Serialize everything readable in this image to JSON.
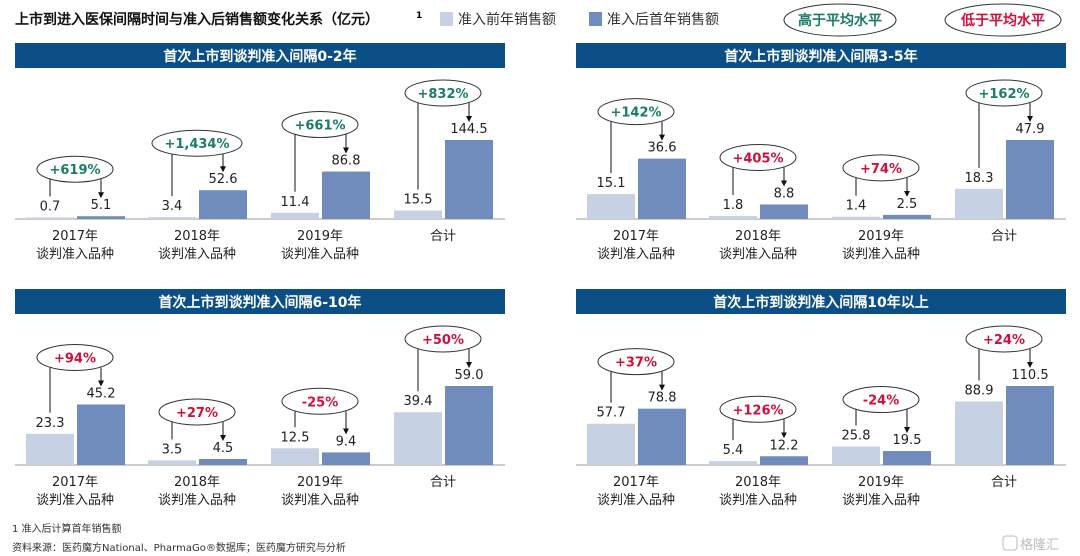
{
  "colors": {
    "header": "#0b4f86",
    "before": "#c6d1e4",
    "after": "#6f8cbd",
    "above_avg": "#1b7c6a",
    "below_avg": "#d0103a"
  },
  "header": {
    "title": "上市到进入医保间隔时间与准入后销售额变化关系（亿元）",
    "footnote_mark": "1",
    "legend_before": "准入前年销售额",
    "legend_after": "准入后首年销售额",
    "badge_above": "高于平均水平",
    "badge_below": "低于平均水平"
  },
  "footer": {
    "note": "1 准入后计算首年销售额",
    "source": "资料来源：医药魔方National、PharmaGo®数据库；医药魔方研究与分析",
    "watermark": "格隆汇"
  },
  "chart_data": [
    {
      "type": "bar",
      "title": "首次上市到谈判准入间隔0-2年",
      "categories": [
        [
          "2017年",
          "谈判准入品种"
        ],
        [
          "2018年",
          "谈判准入品种"
        ],
        [
          "2019年",
          "谈判准入品种"
        ],
        [
          "合计",
          ""
        ]
      ],
      "series": [
        {
          "name": "准入前年销售额",
          "values": [
            0.7,
            3.4,
            11.4,
            15.5
          ]
        },
        {
          "name": "准入后首年销售额",
          "values": [
            5.1,
            52.6,
            86.8,
            144.5
          ]
        }
      ],
      "value_labels": [
        [
          "0.7",
          "5.1"
        ],
        [
          "3.4",
          "52.6"
        ],
        [
          "11.4",
          "86.8"
        ],
        [
          "15.5",
          "144.5"
        ]
      ],
      "changes": [
        "+619%",
        "+1,434%",
        "+661%",
        "+832%"
      ],
      "above_average": [
        true,
        true,
        true,
        true
      ]
    },
    {
      "type": "bar",
      "title": "首次上市到谈判准入间隔3-5年",
      "categories": [
        [
          "2017年",
          "谈判准入品种"
        ],
        [
          "2018年",
          "谈判准入品种"
        ],
        [
          "2019年",
          "谈判准入品种"
        ],
        [
          "合计",
          ""
        ]
      ],
      "series": [
        {
          "name": "准入前年销售额",
          "values": [
            15.1,
            1.8,
            1.4,
            18.3
          ]
        },
        {
          "name": "准入后首年销售额",
          "values": [
            36.6,
            8.8,
            2.5,
            47.9
          ]
        }
      ],
      "value_labels": [
        [
          "15.1",
          "36.6"
        ],
        [
          "1.8",
          "8.8"
        ],
        [
          "1.4",
          "2.5"
        ],
        [
          "18.3",
          "47.9"
        ]
      ],
      "changes": [
        "+142%",
        "+405%",
        "+74%",
        "+162%"
      ],
      "above_average": [
        true,
        false,
        false,
        true
      ]
    },
    {
      "type": "bar",
      "title": "首次上市到谈判准入间隔6-10年",
      "categories": [
        [
          "2017年",
          "谈判准入品种"
        ],
        [
          "2018年",
          "谈判准入品种"
        ],
        [
          "2019年",
          "谈判准入品种"
        ],
        [
          "合计",
          ""
        ]
      ],
      "series": [
        {
          "name": "准入前年销售额",
          "values": [
            23.3,
            3.5,
            12.5,
            39.4
          ]
        },
        {
          "name": "准入后首年销售额",
          "values": [
            45.2,
            4.5,
            9.4,
            59.0
          ]
        }
      ],
      "value_labels": [
        [
          "23.3",
          "45.2"
        ],
        [
          "3.5",
          "4.5"
        ],
        [
          "12.5",
          "9.4"
        ],
        [
          "39.4",
          "59.0"
        ]
      ],
      "changes": [
        "+94%",
        "+27%",
        "-25%",
        "+50%"
      ],
      "above_average": [
        false,
        false,
        false,
        false
      ]
    },
    {
      "type": "bar",
      "title": "首次上市到谈判准入间隔10年以上",
      "categories": [
        [
          "2017年",
          "谈判准入品种"
        ],
        [
          "2018年",
          "谈判准入品种"
        ],
        [
          "2019年",
          "谈判准入品种"
        ],
        [
          "合计",
          ""
        ]
      ],
      "series": [
        {
          "name": "准入前年销售额",
          "values": [
            57.7,
            5.4,
            25.8,
            88.9
          ]
        },
        {
          "name": "准入后首年销售额",
          "values": [
            78.8,
            12.2,
            19.5,
            110.5
          ]
        }
      ],
      "value_labels": [
        [
          "57.7",
          "78.8"
        ],
        [
          "5.4",
          "12.2"
        ],
        [
          "25.8",
          "19.5"
        ],
        [
          "88.9",
          "110.5"
        ]
      ],
      "changes": [
        "+37%",
        "+126%",
        "-24%",
        "+24%"
      ],
      "above_average": [
        false,
        false,
        false,
        false
      ]
    }
  ]
}
